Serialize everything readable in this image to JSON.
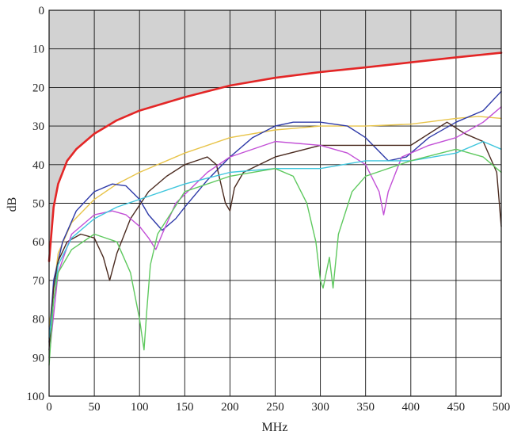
{
  "chart_data": {
    "type": "line",
    "xlabel": "MHz",
    "ylabel": "dB",
    "xlim": [
      0,
      500
    ],
    "ylim": [
      0,
      100
    ],
    "y_inverted": true,
    "x_ticks": [
      0,
      50,
      100,
      150,
      200,
      250,
      300,
      350,
      400,
      450,
      500
    ],
    "y_ticks": [
      0,
      10,
      20,
      30,
      40,
      50,
      60,
      70,
      80,
      90,
      100
    ],
    "grid": true,
    "shaded_region": "between 0 dB and the red curve",
    "series": [
      {
        "color": "#e32626",
        "x": [
          0,
          5,
          10,
          20,
          30,
          50,
          75,
          100,
          150,
          200,
          250,
          300,
          350,
          400,
          450,
          500
        ],
        "y": [
          65,
          51,
          45,
          39,
          36,
          32,
          28.5,
          26,
          22.5,
          19.5,
          17.5,
          16,
          14.8,
          13.5,
          12.2,
          11
        ]
      },
      {
        "color": "#e8c44a",
        "x": [
          0,
          10,
          25,
          50,
          75,
          100,
          150,
          200,
          250,
          300,
          350,
          400,
          450,
          475,
          500
        ],
        "y": [
          82,
          63,
          55,
          49,
          45,
          42,
          37,
          33,
          31,
          30,
          30,
          29.5,
          28,
          27.5,
          28
        ]
      },
      {
        "color": "#2e3aa8",
        "x": [
          0,
          5,
          15,
          30,
          50,
          70,
          85,
          100,
          110,
          125,
          140,
          150,
          175,
          200,
          225,
          250,
          270,
          300,
          330,
          350,
          375,
          395,
          420,
          450,
          480,
          500
        ],
        "y": [
          86,
          70,
          60,
          52,
          47,
          45,
          45.5,
          49,
          53,
          57,
          54,
          51,
          44,
          38,
          33,
          30,
          29,
          29,
          30,
          33,
          39,
          38,
          33,
          29,
          26,
          21
        ]
      },
      {
        "color": "#4a2a1f",
        "x": [
          0,
          5,
          10,
          20,
          35,
          50,
          60,
          67,
          75,
          90,
          110,
          130,
          150,
          175,
          185,
          195,
          200,
          205,
          215,
          250,
          300,
          350,
          400,
          440,
          460,
          480,
          495,
          500
        ],
        "y": [
          88,
          72,
          65,
          60,
          58,
          59,
          64,
          70,
          63,
          54,
          47,
          43,
          40,
          38,
          40,
          50,
          52,
          46,
          42,
          38,
          35,
          35,
          35,
          29,
          32,
          34,
          42,
          56
        ]
      },
      {
        "color": "#c24fd6",
        "x": [
          0,
          10,
          25,
          50,
          70,
          85,
          100,
          110,
          118,
          125,
          140,
          175,
          200,
          250,
          300,
          330,
          350,
          365,
          370,
          375,
          390,
          420,
          450,
          480,
          500
        ],
        "y": [
          90,
          68,
          58,
          53,
          52,
          53,
          56,
          59,
          62,
          58,
          50,
          42,
          38,
          34,
          35,
          37,
          40,
          47,
          53,
          47,
          38,
          35,
          33,
          29,
          25
        ]
      },
      {
        "color": "#3fc6dd",
        "x": [
          0,
          10,
          25,
          50,
          75,
          100,
          150,
          200,
          250,
          300,
          350,
          400,
          450,
          480,
          500
        ],
        "y": [
          85,
          66,
          59,
          54,
          51,
          49,
          45,
          42,
          41,
          41,
          39,
          39,
          37,
          34,
          36
        ]
      },
      {
        "color": "#5fc95f",
        "x": [
          0,
          5,
          10,
          25,
          50,
          75,
          90,
          100,
          105,
          108,
          112,
          120,
          150,
          200,
          250,
          270,
          285,
          295,
          300,
          303,
          310,
          314,
          320,
          335,
          350,
          400,
          450,
          480,
          490,
          500
        ],
        "y": [
          92,
          75,
          68,
          62,
          58,
          60,
          68,
          80,
          88,
          78,
          66,
          58,
          47,
          43,
          41,
          43,
          50,
          60,
          70,
          72,
          64,
          72,
          58,
          47,
          43,
          39,
          36,
          38,
          40,
          42
        ]
      }
    ]
  }
}
